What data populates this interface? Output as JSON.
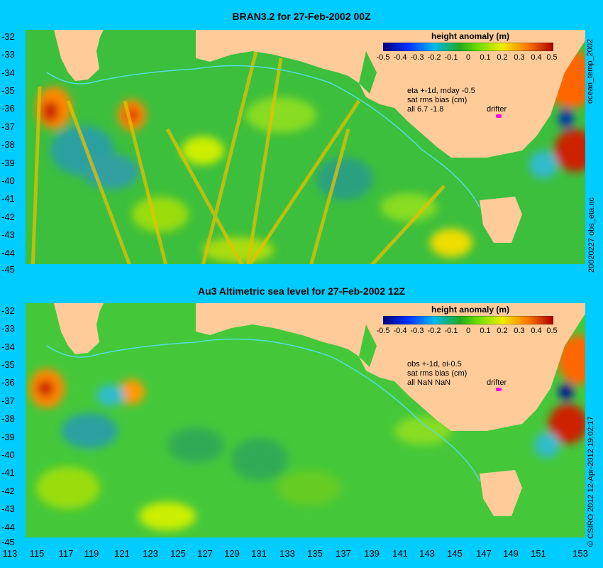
{
  "panels": [
    {
      "title": "BRAN3.2 for 27-Feb-2002 00Z",
      "legend_title": "height anomaly (m)",
      "info_lines": [
        "eta +-1d, mday -0.5",
        "sat rms bias (cm)",
        "all 6.7 -1.8"
      ],
      "drifter_label": "drifter",
      "side_label": "20020227 obs_eta.nc",
      "side_label_top": "ocean_temp_2002"
    },
    {
      "title": "Au3 Altimetric sea level  for 27-Feb-2002 12Z",
      "legend_title": "height anomaly (m)",
      "info_lines": [
        "obs +-1d, oi-0.5",
        "sat rms bias (cm)",
        "all NaN NaN"
      ],
      "drifter_label": "drifter",
      "side_label": "© CSIRO  2012  12-Apr-2012 19:02:17"
    }
  ],
  "y_ticks": [
    "-32",
    "-33",
    "-34",
    "-35",
    "-36",
    "-37",
    "-38",
    "-39",
    "-40",
    "-41",
    "-42",
    "-43",
    "-44",
    "-45"
  ],
  "x_ticks": [
    "113",
    "115",
    "117",
    "119",
    "121",
    "123",
    "125",
    "127",
    "129",
    "131",
    "133",
    "135",
    "137",
    "139",
    "141",
    "143",
    "145",
    "147",
    "149",
    "151",
    "153"
  ],
  "legend_ticks": [
    "-0.5",
    "-0.4",
    "-0.3",
    "-0.2",
    "-0.1",
    "0",
    "0.1",
    "0.2",
    "0.3",
    "0.4",
    "0.5"
  ],
  "colors": {
    "background": "#00ccff",
    "land": "#ffcc99",
    "ocean_base": "#33bb33",
    "drifter": "#ff00ff"
  }
}
